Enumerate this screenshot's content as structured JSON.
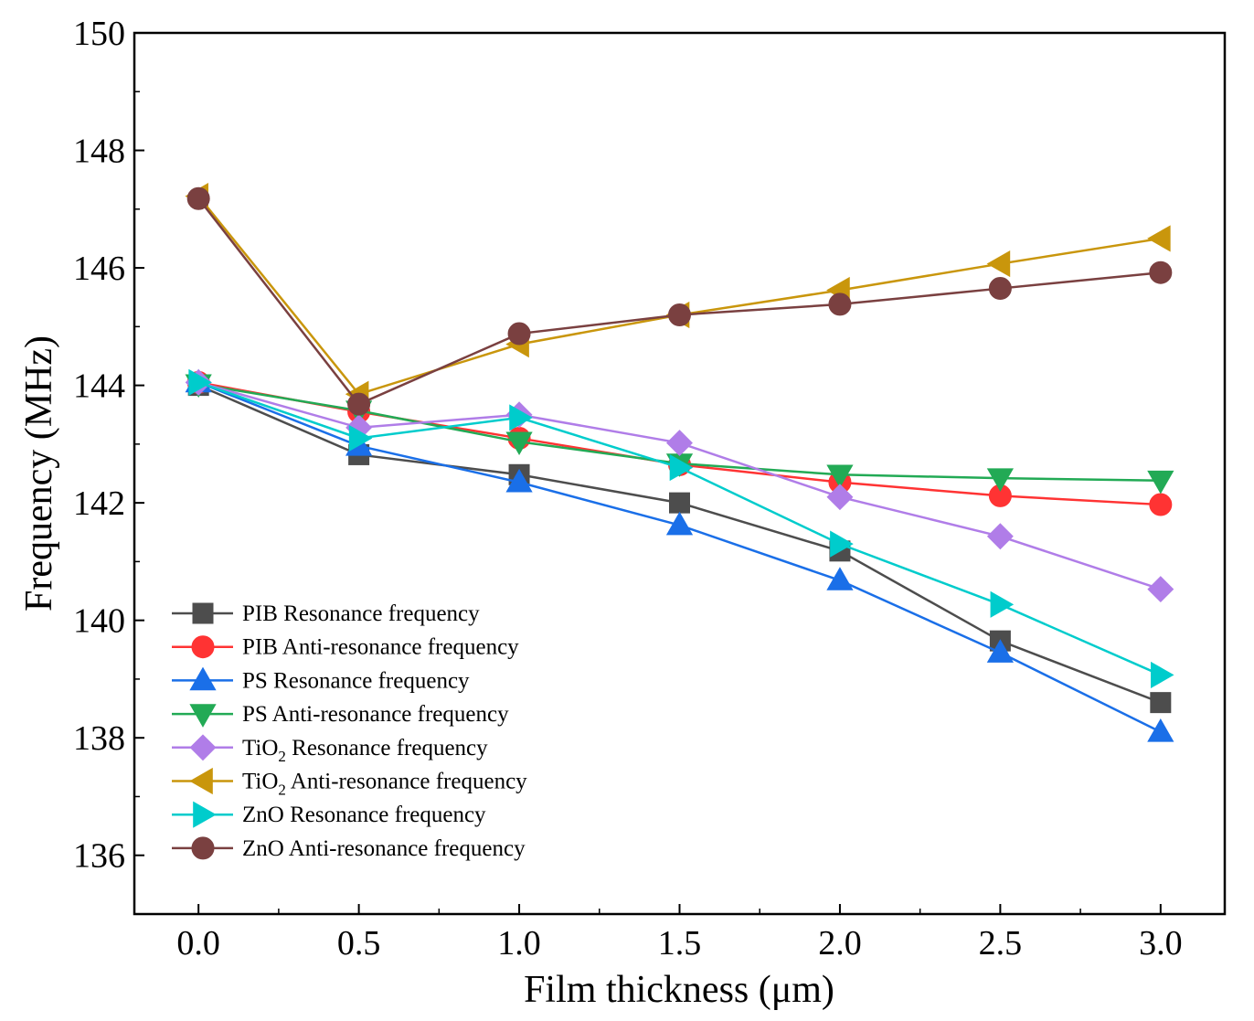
{
  "chart_data": {
    "type": "line",
    "title": "",
    "xlabel": "Film thickness (μm)",
    "ylabel": "Frequency (MHz)",
    "xlim": [
      -0.2,
      3.2
    ],
    "ylim": [
      135,
      150
    ],
    "x": [
      0.0,
      0.5,
      1.0,
      1.5,
      2.0,
      2.5,
      3.0
    ],
    "xticks": [
      "0.0",
      "0.5",
      "1.0",
      "1.5",
      "2.0",
      "2.5",
      "3.0"
    ],
    "yticks": [
      "136",
      "138",
      "140",
      "142",
      "144",
      "146",
      "148",
      "150"
    ],
    "grid": false,
    "legend_position": "bottom-left",
    "series": [
      {
        "name": "PIB Resonance frequency",
        "label_main": "PIB Resonance frequency",
        "color": "#4d4d4d",
        "marker": "square",
        "values": [
          144.0,
          142.82,
          142.48,
          142.0,
          141.18,
          139.65,
          138.6
        ]
      },
      {
        "name": "PIB Anti-resonance frequency",
        "label_main": "PIB Anti-resonance frequency",
        "color": "#ff3333",
        "marker": "circle",
        "values": [
          144.05,
          143.55,
          143.1,
          142.65,
          142.35,
          142.12,
          141.97
        ]
      },
      {
        "name": "PS Resonance frequency",
        "label_main": "PS Resonance frequency",
        "color": "#1a6fe8",
        "marker": "triangle-up",
        "values": [
          144.05,
          142.97,
          142.35,
          141.62,
          140.68,
          139.45,
          138.1
        ]
      },
      {
        "name": "PS Anti-resonance frequency",
        "label_main": "PS Anti-resonance frequency",
        "color": "#22aa55",
        "marker": "triangle-down",
        "values": [
          144.02,
          143.57,
          143.04,
          142.67,
          142.48,
          142.42,
          142.38
        ]
      },
      {
        "name": "TiO2 Resonance frequency",
        "label_main": "TiO",
        "label_sub": "2",
        "label_rest": " Resonance frequency",
        "color": "#b07de8",
        "marker": "diamond",
        "values": [
          144.05,
          143.28,
          143.5,
          143.02,
          142.1,
          141.43,
          140.53
        ]
      },
      {
        "name": "TiO2 Anti-resonance frequency",
        "label_main": "TiO",
        "label_sub": "2",
        "label_rest": " Anti-resonance frequency",
        "color": "#c9960c",
        "marker": "triangle-left",
        "values": [
          147.22,
          143.85,
          144.7,
          145.2,
          145.62,
          146.07,
          146.5
        ]
      },
      {
        "name": "ZnO Resonance frequency",
        "label_main": "ZnO Resonance frequency",
        "color": "#00cccc",
        "marker": "triangle-right",
        "values": [
          144.05,
          143.1,
          143.45,
          142.6,
          141.3,
          140.27,
          139.07
        ]
      },
      {
        "name": "ZnO Anti-resonance frequency",
        "label_main": "ZnO Anti-resonance frequency",
        "color": "#7a4040",
        "marker": "circle",
        "values": [
          147.18,
          143.68,
          144.88,
          145.2,
          145.38,
          145.65,
          145.92
        ]
      }
    ]
  }
}
